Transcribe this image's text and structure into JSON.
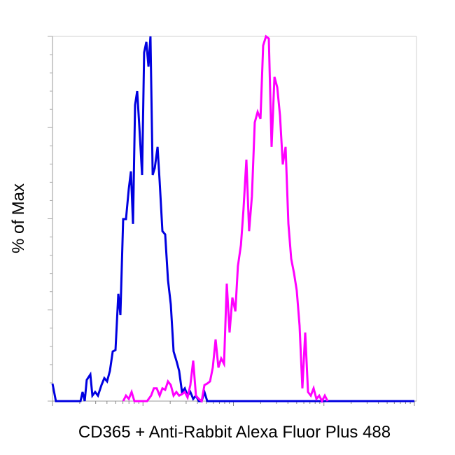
{
  "chart_data": {
    "type": "line",
    "x_label": "CD365 + Anti-Rabbit Alexa Fluor Plus 488",
    "y_label": "% of Max",
    "xscale": "log",
    "xlim": [
      1,
      10000
    ],
    "ylim": [
      0,
      100
    ],
    "series": [
      {
        "color": "#0000e0",
        "x": [
          1,
          1.09,
          2.04,
          2.15,
          2.27,
          2.39,
          2.62,
          2.76,
          2.96,
          3.18,
          3.48,
          3.74,
          4.01,
          4.31,
          4.63,
          4.97,
          5.34,
          5.63,
          6.04,
          6.49,
          6.97,
          7.36,
          7.76,
          8.18,
          8.63,
          9.11,
          9.78,
          10.3,
          10.9,
          11.5,
          12.1,
          12.8,
          13.5,
          14.5,
          15.3,
          16.4,
          17.6,
          18.9,
          20.3,
          21.8,
          23.4,
          25.1,
          27.0,
          29.0,
          31.1,
          33.4,
          35.9,
          38.5,
          41.4,
          44.5,
          47.8,
          51.3,
          10000
        ],
        "values": [
          4.8,
          0,
          0,
          2.5,
          0,
          5.8,
          7.3,
          1.5,
          2.5,
          1.5,
          4.4,
          6.3,
          5.4,
          8.3,
          13.6,
          14.0,
          29.4,
          23.6,
          49.9,
          49.9,
          58.2,
          63.0,
          48.6,
          81.2,
          85.0,
          75.4,
          62.0,
          95.6,
          98.5,
          91.7,
          100,
          62.0,
          63.9,
          69.7,
          60.1,
          46.6,
          45.7,
          33.2,
          26.5,
          13.6,
          11.1,
          8.3,
          2.5,
          3.5,
          1.5,
          2.5,
          0.6,
          1.5,
          0,
          0,
          2.5,
          0,
          0
        ]
      },
      {
        "color": "#ff00ff",
        "x": [
          6.04,
          6.49,
          6.97,
          7.49,
          8.04,
          11.1,
          12.3,
          13.2,
          14.2,
          15.3,
          16.4,
          17.6,
          18.9,
          20.3,
          21.8,
          23.4,
          25.1,
          27.0,
          29.0,
          31.1,
          33.4,
          35.9,
          38.5,
          41.4,
          44.5,
          47.8,
          51.3,
          55.1,
          59.1,
          63.5,
          68.2,
          73.2,
          78.7,
          84.4,
          90.6,
          97.3,
          105,
          112,
          121,
          129,
          139,
          149,
          160,
          172,
          185,
          199,
          213,
          229,
          246,
          264,
          284,
          305,
          327,
          351,
          377,
          405,
          435,
          467,
          501,
          538,
          578,
          621,
          667,
          716,
          769,
          826,
          887,
          952,
          1023,
          1099
        ],
        "values": [
          0,
          1.5,
          0.6,
          2.5,
          0,
          0,
          1.5,
          3.5,
          3.5,
          1.5,
          3.5,
          3.1,
          5.4,
          4.4,
          1.5,
          2.5,
          1.5,
          1.9,
          2.5,
          1.0,
          4.4,
          11.1,
          1.5,
          0.6,
          0,
          4.4,
          4.8,
          5.4,
          9.2,
          16.9,
          9.2,
          11.7,
          10.2,
          32.2,
          18.8,
          28.4,
          24.6,
          37.0,
          42.8,
          52.4,
          66.2,
          46.6,
          56.2,
          76.4,
          79.3,
          77.4,
          97.5,
          100,
          99.4,
          69.7,
          88.9,
          86.0,
          78.3,
          64.9,
          69.7,
          48.6,
          39.0,
          35.1,
          30.3,
          20.7,
          3.5,
          18.8,
          2.5,
          1.5,
          3.5,
          0.6,
          1.5,
          0,
          1.5,
          0
        ]
      }
    ]
  }
}
